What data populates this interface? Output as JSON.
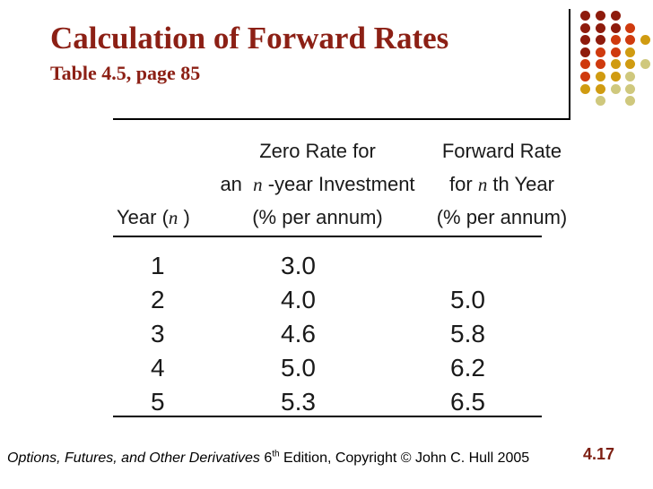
{
  "slide": {
    "title": "Calculation of Forward Rates",
    "subtitle": "Table 4.5, page 85",
    "page_number": "4.17",
    "footer": {
      "book_italic": "Options, Futures, and Other Derivatives",
      "edition_number": " 6",
      "edition_sup": "th",
      "rest": " Edition, Copyright © John C. Hull 2005"
    }
  },
  "colors": {
    "title": "#8c2015",
    "page_number": "#7d1f12",
    "rule": "#000000",
    "body_text": "#1a1a1a"
  },
  "table": {
    "header": {
      "col1_line3_prefix": "Year (",
      "col1_line3_n": "n",
      "col1_line3_suffix": " )",
      "col2_line1": "Zero Rate for",
      "col2_line2_prefix": "an  ",
      "col2_line2_n": "n",
      "col2_line2_suffix": " -year Investment",
      "col2_line3": "(% per annum)",
      "col3_line1": "Forward Rate",
      "col3_line2_prefix": "for ",
      "col3_line2_n": "n",
      "col3_line2_suffix": " th Year",
      "col3_line3": "(% per annum)"
    },
    "rows": [
      {
        "year": "1",
        "zero": "3.0",
        "fwd": ""
      },
      {
        "year": "2",
        "zero": "4.0",
        "fwd": "5.0"
      },
      {
        "year": "3",
        "zero": "4.6",
        "fwd": "5.8"
      },
      {
        "year": "4",
        "zero": "5.0",
        "fwd": "6.2"
      },
      {
        "year": "5",
        "zero": "5.3",
        "fwd": "6.5"
      }
    ]
  },
  "decoration": {
    "dot_colors": {
      "dark": "#8e1b0c",
      "red": "#cf3a0e",
      "gold": "#d09b11",
      "khaki": "#cfc87d"
    },
    "dot_rows": [
      [
        "dark",
        "dark",
        "dark",
        null,
        null
      ],
      [
        "dark",
        "dark",
        "dark",
        "red",
        null
      ],
      [
        "dark",
        "dark",
        "red",
        "red",
        "gold"
      ],
      [
        "dark",
        "red",
        "red",
        "gold",
        null
      ],
      [
        "red",
        "red",
        "gold",
        "gold",
        "khaki"
      ],
      [
        "red",
        "gold",
        "gold",
        "khaki",
        null
      ],
      [
        "gold",
        "gold",
        "khaki",
        "khaki",
        null
      ],
      [
        null,
        "khaki",
        null,
        "khaki",
        null
      ]
    ]
  }
}
